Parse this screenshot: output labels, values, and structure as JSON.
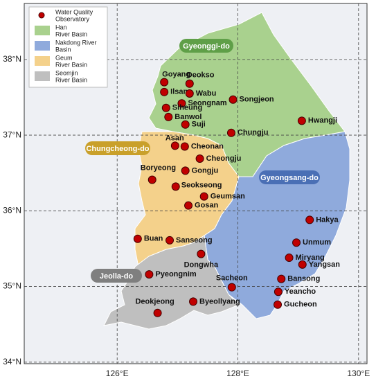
{
  "map": {
    "xlim": [
      124.46,
      130.14
    ],
    "ylim": [
      33.98,
      38.74
    ],
    "xticks": [
      {
        "value": 126,
        "label": "126°E"
      },
      {
        "value": 128,
        "label": "128°E"
      },
      {
        "value": 130,
        "label": "130°E"
      }
    ],
    "yticks": [
      {
        "value": 34,
        "label": "34°N"
      },
      {
        "value": 35,
        "label": "35°N"
      },
      {
        "value": 36,
        "label": "36°N"
      },
      {
        "value": 37,
        "label": "37°N"
      },
      {
        "value": 38,
        "label": "38°N"
      }
    ],
    "legend": [
      {
        "lines": [
          "Water Quality",
          "Observatory"
        ],
        "color": "#c00000",
        "kind": "dot"
      },
      {
        "lines": [
          "Han",
          "River Basin"
        ],
        "color": "#a9d18e",
        "kind": "box"
      },
      {
        "lines": [
          "Nakdong River",
          "Basin"
        ],
        "color": "#8faadc",
        "kind": "box"
      },
      {
        "lines": [
          "Geum",
          "River Basin"
        ],
        "color": "#f4d18b",
        "kind": "box"
      },
      {
        "lines": [
          "Seomjin",
          "River Basin"
        ],
        "color": "#bfbfbf",
        "kind": "box"
      }
    ],
    "regions": [
      {
        "label": "Gyeonggi-do",
        "color": "#5f9f48"
      },
      {
        "label": "Chungcheong-do",
        "color": "#c9a02a"
      },
      {
        "label": "Gyeongsang-do",
        "color": "#4a6fb5"
      },
      {
        "label": "Jeolla-do",
        "color": "#7f7f7f"
      }
    ],
    "stations": [
      {
        "name": "Goyang",
        "lon": 126.78,
        "lat": 37.7
      },
      {
        "name": "Deokso",
        "lon": 127.2,
        "lat": 37.68
      },
      {
        "name": "Ilsan",
        "lon": 126.78,
        "lat": 37.57
      },
      {
        "name": "Wabu",
        "lon": 127.2,
        "lat": 37.55
      },
      {
        "name": "Seongnam",
        "lon": 127.07,
        "lat": 37.42
      },
      {
        "name": "Songjeon",
        "lon": 127.92,
        "lat": 37.47
      },
      {
        "name": "Siheung",
        "lon": 126.81,
        "lat": 37.36
      },
      {
        "name": "Banwol",
        "lon": 126.85,
        "lat": 37.24
      },
      {
        "name": "Suji",
        "lon": 127.13,
        "lat": 37.14
      },
      {
        "name": "Hwangji",
        "lon": 129.06,
        "lat": 37.19
      },
      {
        "name": "Chungju",
        "lon": 127.89,
        "lat": 37.03
      },
      {
        "name": "Asan",
        "lon": 126.96,
        "lat": 36.86
      },
      {
        "name": "Cheonan",
        "lon": 127.12,
        "lat": 36.85
      },
      {
        "name": "Cheongju",
        "lon": 127.37,
        "lat": 36.69
      },
      {
        "name": "Gongju",
        "lon": 127.13,
        "lat": 36.53
      },
      {
        "name": "Boryeong",
        "lon": 126.58,
        "lat": 36.41
      },
      {
        "name": "Seokseong",
        "lon": 126.97,
        "lat": 36.32
      },
      {
        "name": "Geumsan",
        "lon": 127.44,
        "lat": 36.19
      },
      {
        "name": "Gosan",
        "lon": 127.18,
        "lat": 36.07
      },
      {
        "name": "Hakya",
        "lon": 129.19,
        "lat": 35.88
      },
      {
        "name": "Buan",
        "lon": 126.34,
        "lat": 35.63
      },
      {
        "name": "Sanseong",
        "lon": 126.87,
        "lat": 35.61
      },
      {
        "name": "Unmum",
        "lon": 128.97,
        "lat": 35.58
      },
      {
        "name": "Dongwha",
        "lon": 127.39,
        "lat": 35.43
      },
      {
        "name": "Miryang",
        "lon": 128.85,
        "lat": 35.38
      },
      {
        "name": "Yangsan",
        "lon": 129.07,
        "lat": 35.29
      },
      {
        "name": "Pyeongnim",
        "lon": 126.53,
        "lat": 35.16
      },
      {
        "name": "Bansong",
        "lon": 128.72,
        "lat": 35.1
      },
      {
        "name": "Sacheon",
        "lon": 127.9,
        "lat": 34.99
      },
      {
        "name": "Yeancho",
        "lon": 128.67,
        "lat": 34.93
      },
      {
        "name": "Gucheon",
        "lon": 128.66,
        "lat": 34.76
      },
      {
        "name": "Byeollyang",
        "lon": 127.26,
        "lat": 34.8
      },
      {
        "name": "Deokjeong",
        "lon": 126.67,
        "lat": 34.65
      }
    ]
  }
}
